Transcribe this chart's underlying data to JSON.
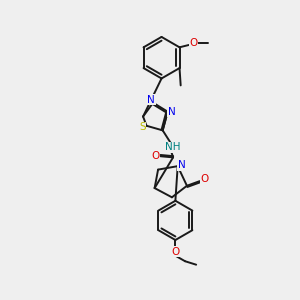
{
  "bg_color": "#efefef",
  "bond_color": "#1a1a1a",
  "atom_colors": {
    "N": "#0000ee",
    "O": "#dd0000",
    "S": "#bbbb00",
    "H": "#008080",
    "C": "#1a1a1a"
  },
  "figsize": [
    3.0,
    3.0
  ],
  "dpi": 100,
  "xlim": [
    0,
    10
  ],
  "ylim": [
    0,
    13
  ]
}
